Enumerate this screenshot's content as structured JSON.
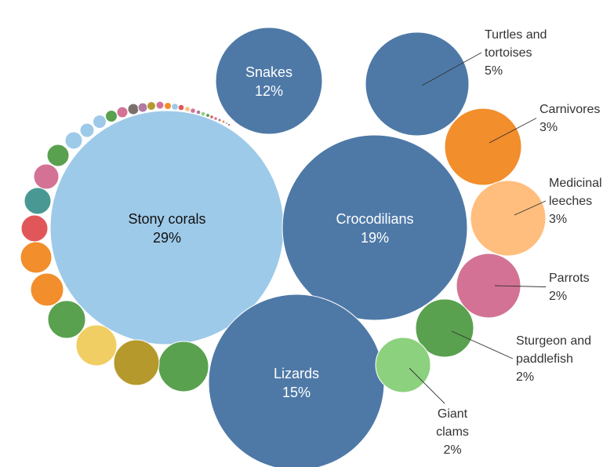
{
  "chart_data": {
    "type": "packed-bubble",
    "unit": "%",
    "bubbles": [
      {
        "name": "Stony corals",
        "value": 29,
        "color": "#9ecae9",
        "label": "inside",
        "text_color": "#111111"
      },
      {
        "name": "Crocodilians",
        "value": 19,
        "color": "#4e79a7",
        "label": "inside",
        "text_color": "#ffffff"
      },
      {
        "name": "Lizards",
        "value": 15,
        "color": "#4e79a7",
        "label": "inside",
        "text_color": "#ffffff"
      },
      {
        "name": "Snakes",
        "value": 12,
        "color": "#4e79a7",
        "label": "inside",
        "text_color": "#ffffff"
      },
      {
        "name": "Turtles and tortoises",
        "value": 5,
        "color": "#4e79a7",
        "label": "outside"
      },
      {
        "name": "Carnivores",
        "value": 3,
        "color": "#f28e2b",
        "label": "outside"
      },
      {
        "name": "Medicinal leeches",
        "value": 3,
        "color": "#ffbe7d",
        "label": "outside"
      },
      {
        "name": "Parrots",
        "value": 2,
        "color": "#d37295",
        "label": "outside"
      },
      {
        "name": "Sturgeon and paddlefish",
        "value": 2,
        "color": "#59a14f",
        "label": "outside"
      },
      {
        "name": "Giant clams",
        "value": 2,
        "color": "#8cd17d",
        "label": "outside"
      },
      {
        "name": "",
        "value": 1.3,
        "color": "#59a14f"
      },
      {
        "name": "",
        "value": 1.3,
        "color": "#b6992d"
      },
      {
        "name": "",
        "value": 1.1,
        "color": "#f1ce63"
      },
      {
        "name": "",
        "value": 0.9,
        "color": "#59a14f"
      },
      {
        "name": "",
        "value": 0.75,
        "color": "#f28e2b"
      },
      {
        "name": "",
        "value": 0.75,
        "color": "#f28e2b"
      },
      {
        "name": "",
        "value": 0.6,
        "color": "#e15759"
      },
      {
        "name": "",
        "value": 0.6,
        "color": "#499894"
      },
      {
        "name": "",
        "value": 0.45,
        "color": "#d37295"
      },
      {
        "name": "",
        "value": 0.4,
        "color": "#59a14f"
      },
      {
        "name": "",
        "value": 0.3,
        "color": "#9ecae9"
      },
      {
        "name": "",
        "value": 0.2,
        "color": "#9ecae9"
      },
      {
        "name": "",
        "value": 0.17,
        "color": "#9ecae9"
      },
      {
        "name": "",
        "value": 0.14,
        "color": "#59a14f"
      },
      {
        "name": "",
        "value": 0.12,
        "color": "#d37295"
      },
      {
        "name": "",
        "value": 0.12,
        "color": "#79706e"
      },
      {
        "name": "",
        "value": 0.1,
        "color": "#b07aa1"
      },
      {
        "name": "",
        "value": 0.09,
        "color": "#b6992d"
      },
      {
        "name": "",
        "value": 0.08,
        "color": "#d37295"
      },
      {
        "name": "",
        "value": 0.07,
        "color": "#f28e2b"
      },
      {
        "name": "",
        "value": 0.05,
        "color": "#9ecae9"
      },
      {
        "name": "",
        "value": 0.04,
        "color": "#e15759"
      },
      {
        "name": "",
        "value": 0.03,
        "color": "#ffbe7d"
      },
      {
        "name": "",
        "value": 0.025,
        "color": "#d37295"
      },
      {
        "name": "",
        "value": 0.02,
        "color": "#b07aa1"
      },
      {
        "name": "",
        "value": 0.02,
        "color": "#8cd17d"
      },
      {
        "name": "",
        "value": 0.015,
        "color": "#59a14f"
      },
      {
        "name": "",
        "value": 0.015,
        "color": "#e15759"
      },
      {
        "name": "",
        "value": 0.01,
        "color": "#d37295"
      },
      {
        "name": "",
        "value": 0.01,
        "color": "#b07aa1"
      },
      {
        "name": "",
        "value": 0.01,
        "color": "#f28e2b"
      },
      {
        "name": "",
        "value": 0.008,
        "color": "#9ecae9"
      },
      {
        "name": "",
        "value": 0.006,
        "color": "#e15759"
      }
    ]
  }
}
